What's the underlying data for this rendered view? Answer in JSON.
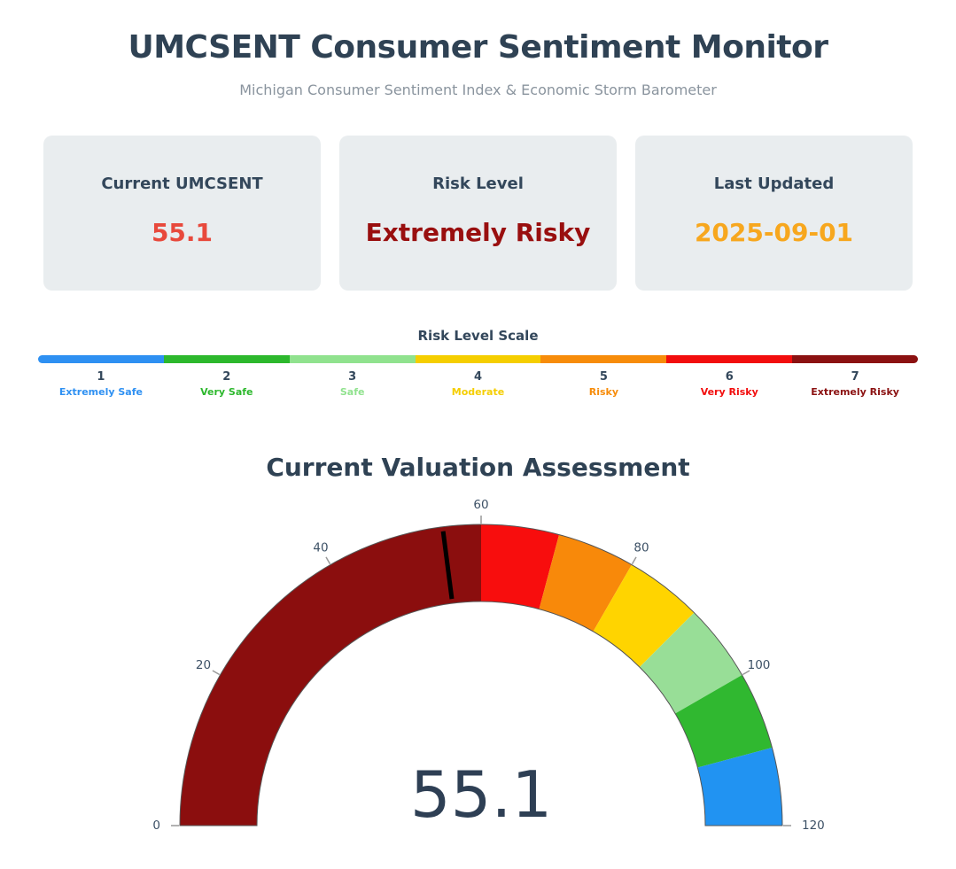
{
  "header": {
    "title": "UMCSENT Consumer Sentiment Monitor",
    "subtitle": "Michigan Consumer Sentiment Index & Economic Storm Barometer"
  },
  "cards": [
    {
      "title": "Current UMCSENT",
      "value": "55.1",
      "value_color": "#E8493C"
    },
    {
      "title": "Risk Level",
      "value": "Extremely Risky",
      "value_color": "#990F0F"
    },
    {
      "title": "Last Updated",
      "value": "2025-09-01",
      "value_color": "#F7A71E"
    }
  ],
  "risk_scale": {
    "title": "Risk Level Scale",
    "levels": [
      {
        "number": "1",
        "label": "Extremely Safe",
        "color": "#2E90F2"
      },
      {
        "number": "2",
        "label": "Very Safe",
        "color": "#2DB82D"
      },
      {
        "number": "3",
        "label": "Safe",
        "color": "#90E28E"
      },
      {
        "number": "4",
        "label": "Moderate",
        "color": "#F5CE00"
      },
      {
        "number": "5",
        "label": "Risky",
        "color": "#F78C0A"
      },
      {
        "number": "6",
        "label": "Very Risky",
        "color": "#F20D0D"
      },
      {
        "number": "7",
        "label": "Extremely Risky",
        "color": "#8B1111"
      }
    ]
  },
  "chart_data": {
    "type": "gauge",
    "title": "Current Valuation Assessment",
    "value": 55.1,
    "value_display": "55.1",
    "axis": {
      "min": 0,
      "max": 120,
      "ticks": [
        0,
        20,
        40,
        60,
        80,
        100,
        120
      ]
    },
    "steps": [
      {
        "from": 0,
        "to": 60,
        "color": "#8B0E0E"
      },
      {
        "from": 60,
        "to": 70,
        "color": "#F80D0D"
      },
      {
        "from": 70,
        "to": 80,
        "color": "#F8890A"
      },
      {
        "from": 80,
        "to": 90,
        "color": "#FFD400"
      },
      {
        "from": 90,
        "to": 100,
        "color": "#98DE97"
      },
      {
        "from": 100,
        "to": 110,
        "color": "#30B830"
      },
      {
        "from": 110,
        "to": 120,
        "color": "#2193F2"
      }
    ],
    "threshold": 55.1,
    "number_color": "#2E3F54",
    "needle_color": "#000000",
    "outline_color": "#555555",
    "tick_color": "#999999",
    "tick_label_color": "#3D5166"
  }
}
